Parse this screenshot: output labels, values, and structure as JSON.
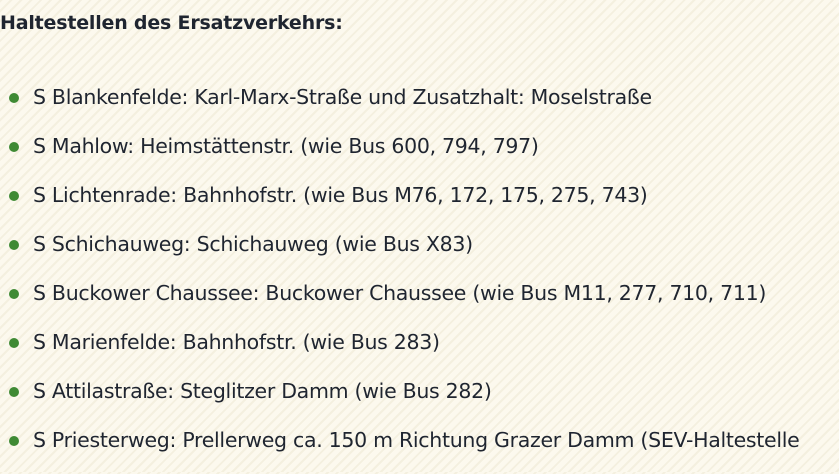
{
  "heading": "Haltestellen des Ersatzverkehrs:",
  "bullet_color": "#3f8a34",
  "stops": [
    "S Blankenfelde: Karl-Marx-Straße und Zusatzhalt: Moselstraße",
    "S Mahlow: Heimstättenstr. (wie Bus 600, 794, 797)",
    "S Lichtenrade: Bahnhofstr. (wie Bus M76, 172, 175, 275, 743)",
    "S Schichauweg: Schichauweg (wie Bus X83)",
    "S Buckower Chaussee: Buckower Chaussee (wie Bus M11, 277, 710, 711)",
    "S Marienfelde: Bahnhofstr. (wie Bus 283)",
    "S Attilastraße: Steglitzer Damm (wie Bus 282)",
    "S Priesterweg: Prellerweg ca. 150 m Richtung Grazer Damm (SEV-Haltestelle"
  ]
}
